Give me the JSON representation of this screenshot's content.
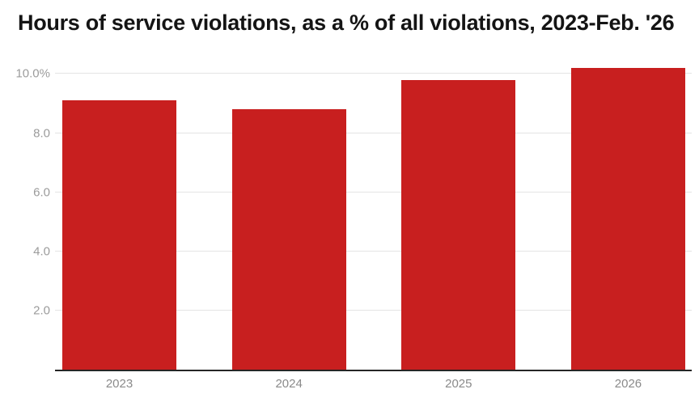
{
  "header": {
    "title": "Hours of service violations, as a % of all violations, 2023-Feb. '26"
  },
  "chart_data": {
    "type": "bar",
    "title": "Hours of service violations, as a % of all violations, 2023-Feb. '26",
    "categories": [
      "2023",
      "2024",
      "2025",
      "2026"
    ],
    "values": [
      9.1,
      8.8,
      9.8,
      10.2
    ],
    "unit": "%",
    "xlabel": "",
    "ylabel": "",
    "ylim": [
      0,
      10.45
    ],
    "yticks": [
      {
        "value": 2,
        "label": "2.0"
      },
      {
        "value": 4,
        "label": "4.0"
      },
      {
        "value": 6,
        "label": "6.0"
      },
      {
        "value": 8,
        "label": "8.0"
      },
      {
        "value": 10,
        "label": "10.0%"
      }
    ],
    "grid": "horizontal",
    "legend_position": "none",
    "colors": {
      "bar": "#c81f1f",
      "gridline": "#e4e4e4",
      "axis_line": "#262626",
      "ytick_label": "#9b9b9b",
      "xtick_label": "#8a8a8a",
      "title": "#141414",
      "background": "#ffffff"
    }
  }
}
